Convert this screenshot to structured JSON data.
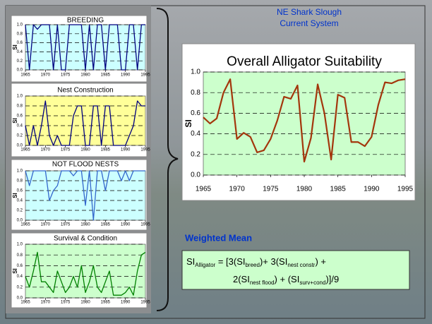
{
  "header": {
    "line1": "NE Shark Slough",
    "line2": "Current System"
  },
  "weighted_mean": "Weighted Mean",
  "formula": {
    "line1": [
      {
        "text": "SI",
        "sub": false
      },
      {
        "text": "Alligator",
        "sub": true
      },
      {
        "text": " = [3(SI",
        "sub": false
      },
      {
        "text": "breed",
        "sub": true
      },
      {
        "text": ")+ 3(SI",
        "sub": false
      },
      {
        "text": "nest constr",
        "sub": true
      },
      {
        "text": ") +",
        "sub": false
      }
    ],
    "line2": [
      {
        "text": "2(SI",
        "sub": false
      },
      {
        "text": "nest flood",
        "sub": true
      },
      {
        "text": ") + (SI",
        "sub": false
      },
      {
        "text": "surv+cond",
        "sub": true
      },
      {
        "text": ")]/9",
        "sub": false
      }
    ]
  },
  "chart_data": [
    {
      "type": "line",
      "title": "Overall Alligator Suitability",
      "y_label": "SI",
      "color": "#a3360c",
      "background": "#ccffcc",
      "grid": true,
      "x": [
        1965,
        1966,
        1967,
        1968,
        1969,
        1970,
        1971,
        1972,
        1973,
        1974,
        1975,
        1976,
        1977,
        1978,
        1979,
        1980,
        1981,
        1982,
        1983,
        1984,
        1985,
        1986,
        1987,
        1988,
        1989,
        1990,
        1991,
        1992,
        1993,
        1994,
        1995
      ],
      "values": [
        0.56,
        0.5,
        0.55,
        0.8,
        0.93,
        0.35,
        0.41,
        0.37,
        0.22,
        0.24,
        0.35,
        0.53,
        0.76,
        0.74,
        0.87,
        0.13,
        0.36,
        0.88,
        0.6,
        0.15,
        0.78,
        0.75,
        0.32,
        0.32,
        0.28,
        0.37,
        0.68,
        0.9,
        0.89,
        0.92,
        0.93
      ],
      "xlim": [
        1965,
        1995
      ],
      "xticks": [
        1965,
        1970,
        1975,
        1980,
        1985,
        1990,
        1995
      ],
      "ylim": [
        0,
        1
      ],
      "yticks": [
        {
          "value": 0,
          "label": "0.0"
        },
        0.2,
        0.4,
        0.6,
        0.8,
        {
          "value": 1,
          "label": "1.0"
        }
      ]
    },
    {
      "type": "line",
      "title": "BREEDING",
      "y_label": "SI",
      "color": "#000080",
      "background": "#ccffff",
      "grid": true,
      "x": [
        1965,
        1966,
        1967,
        1968,
        1969,
        1970,
        1971,
        1972,
        1973,
        1974,
        1975,
        1976,
        1977,
        1978,
        1979,
        1980,
        1981,
        1982,
        1983,
        1984,
        1985,
        1986,
        1987,
        1988,
        1989,
        1990,
        1991,
        1992,
        1993,
        1994,
        1995
      ],
      "values": [
        1,
        0,
        1,
        0.9,
        1,
        1,
        1,
        0,
        1,
        0,
        0,
        1,
        1,
        1,
        1,
        0,
        1,
        0,
        1,
        1,
        0,
        1,
        1,
        1,
        0,
        0,
        1,
        1,
        0,
        1,
        1
      ],
      "xlim": [
        1965,
        1995
      ],
      "xticks": [
        1965,
        1970,
        1975,
        1980,
        1985,
        1990,
        1995
      ],
      "ylim": [
        0,
        1
      ],
      "yticks": [
        {
          "value": 0,
          "label": "0.0"
        },
        0.2,
        0.4,
        0.6,
        0.8,
        {
          "value": 1,
          "label": "1.0"
        }
      ]
    },
    {
      "type": "line",
      "title": "Nest Construction",
      "y_label": "SI",
      "color": "#000080",
      "background": "#ffff99",
      "grid": true,
      "x": [
        1965,
        1966,
        1967,
        1968,
        1969,
        1970,
        1971,
        1972,
        1973,
        1974,
        1975,
        1976,
        1977,
        1978,
        1979,
        1980,
        1981,
        1982,
        1983,
        1984,
        1985,
        1986,
        1987,
        1988,
        1989,
        1990,
        1991,
        1992,
        1993,
        1994,
        1995
      ],
      "values": [
        0.4,
        0,
        0.4,
        0,
        0.4,
        0.9,
        0.2,
        0,
        0.2,
        0,
        0,
        0,
        0.6,
        0.8,
        0.8,
        0,
        0,
        0.8,
        0.8,
        0,
        0.8,
        0.8,
        0,
        0,
        0,
        0,
        0.2,
        0.4,
        0.9,
        0.8,
        0.8
      ],
      "xlim": [
        1965,
        1995
      ],
      "xticks": [
        1965,
        1970,
        1975,
        1980,
        1985,
        1990,
        1995
      ],
      "ylim": [
        0,
        1
      ],
      "yticks": [
        {
          "value": 0,
          "label": "0.0"
        },
        0.2,
        0.4,
        0.6,
        0.8,
        {
          "value": 1,
          "label": "1.0"
        }
      ]
    },
    {
      "type": "line",
      "title": "NOT FLOOD NESTS",
      "y_label": "SI",
      "color": "#3366cc",
      "background": "#ccffff",
      "grid": true,
      "x": [
        1965,
        1966,
        1967,
        1968,
        1969,
        1970,
        1971,
        1972,
        1973,
        1974,
        1975,
        1976,
        1977,
        1978,
        1979,
        1980,
        1981,
        1982,
        1983,
        1984,
        1985,
        1986,
        1987,
        1988,
        1989,
        1990,
        1991,
        1992,
        1993,
        1994,
        1995
      ],
      "values": [
        1,
        0.7,
        1,
        1,
        1,
        1,
        0.4,
        0.6,
        0.7,
        1,
        1,
        1,
        0.9,
        1,
        1,
        0.3,
        1,
        0,
        1,
        1,
        0.6,
        1,
        1,
        1,
        0.8,
        1,
        0.8,
        1,
        1,
        1,
        1
      ],
      "xlim": [
        1965,
        1995
      ],
      "xticks": [
        1965,
        1970,
        1975,
        1980,
        1985,
        1990,
        1995
      ],
      "ylim": [
        0,
        1
      ],
      "yticks": [
        {
          "value": 0,
          "label": "0.0"
        },
        0.2,
        0.4,
        0.6,
        0.8,
        {
          "value": 1,
          "label": "1.0"
        }
      ]
    },
    {
      "type": "line",
      "title": "Survival & Condition",
      "y_label": "SI",
      "color": "#008000",
      "background": "#ccffcc",
      "grid": true,
      "x": [
        1965,
        1966,
        1967,
        1968,
        1969,
        1970,
        1971,
        1972,
        1973,
        1974,
        1975,
        1976,
        1977,
        1978,
        1979,
        1980,
        1981,
        1982,
        1983,
        1984,
        1985,
        1986,
        1987,
        1988,
        1989,
        1990,
        1991,
        1992,
        1993,
        1994,
        1995
      ],
      "values": [
        0.4,
        0.2,
        0.5,
        0.85,
        0.3,
        0.3,
        0.2,
        0.1,
        0.5,
        0.3,
        0.1,
        0.2,
        0.4,
        0.2,
        0.6,
        0.1,
        0.3,
        0.6,
        0.2,
        0.1,
        0.3,
        0.5,
        0.05,
        0.05,
        0.05,
        0.1,
        0.2,
        0.05,
        0.5,
        0.8,
        0.85
      ],
      "xlim": [
        1965,
        1995
      ],
      "xticks": [
        1965,
        1970,
        1975,
        1980,
        1985,
        1990,
        1995
      ],
      "ylim": [
        0,
        1
      ],
      "yticks": [
        {
          "value": 0,
          "label": "0.0"
        },
        0.2,
        0.4,
        0.6,
        0.8,
        {
          "value": 1,
          "label": "1.0"
        }
      ]
    }
  ]
}
